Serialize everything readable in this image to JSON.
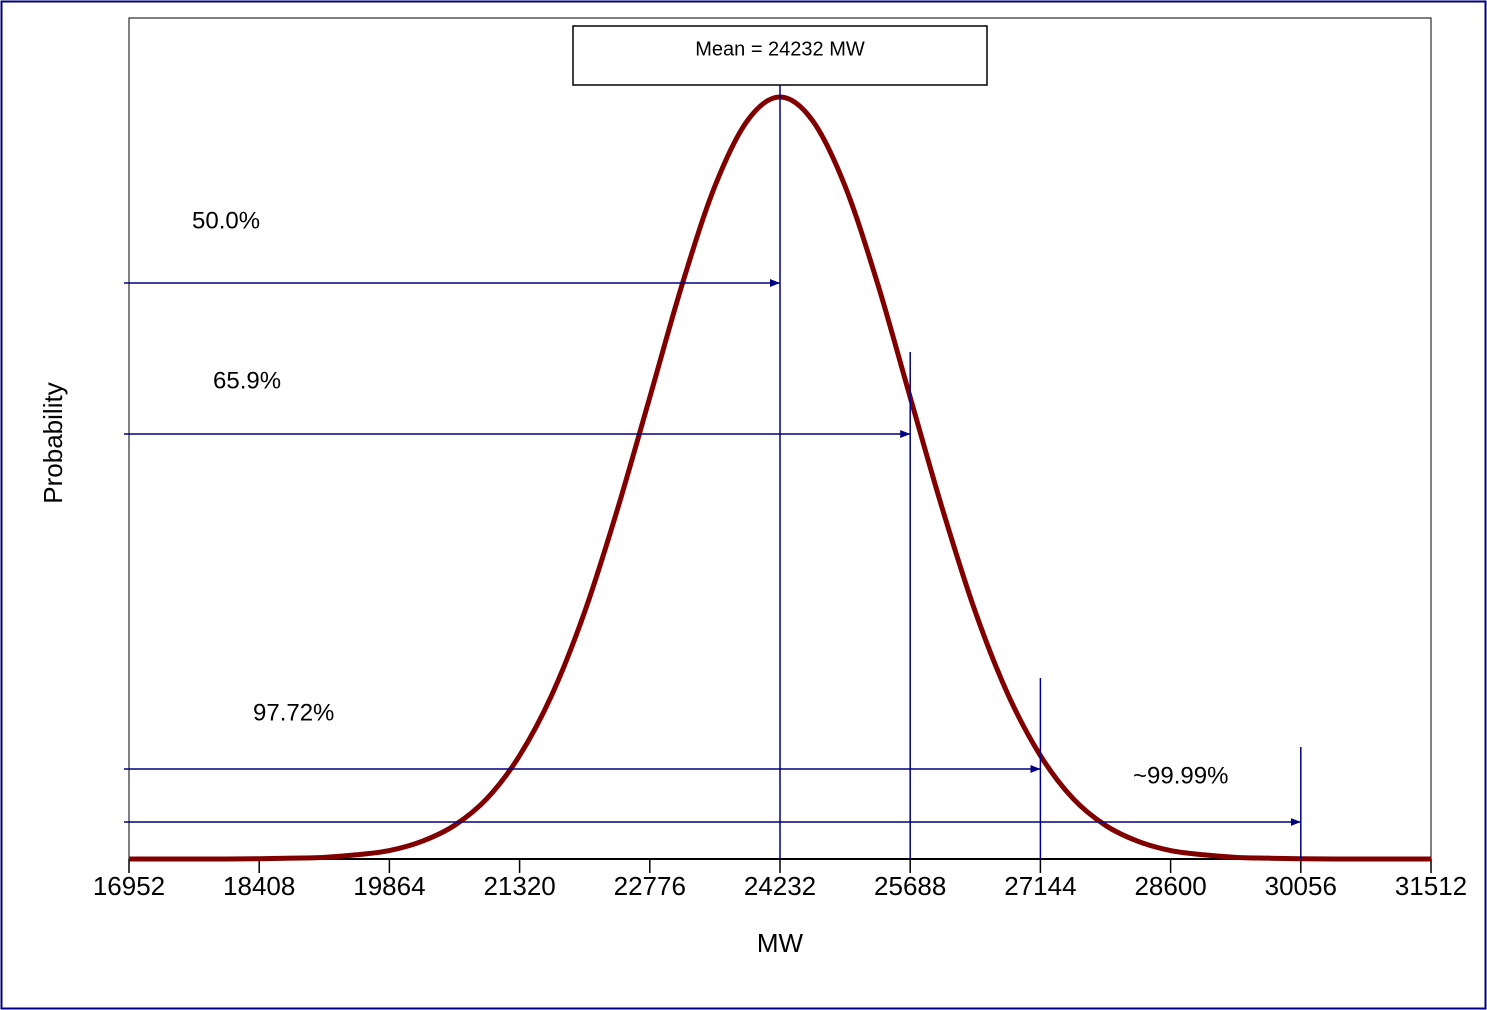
{
  "chart_data": {
    "type": "line",
    "title": "Mean =  24232 MW",
    "x_label": "MW",
    "y_label": "Probability",
    "x": [
      16952,
      17316,
      17680,
      18044,
      18408,
      18772,
      19136,
      19500,
      19864,
      20228,
      20592,
      20956,
      21320,
      21684,
      22048,
      22412,
      22776,
      23140,
      23504,
      23868,
      24232,
      24596,
      24960,
      25324,
      25688,
      26052,
      26416,
      26780,
      27144,
      27508,
      27872,
      28236,
      28600,
      28964,
      29328,
      29692,
      30056,
      30420,
      30784,
      31148,
      31512
    ],
    "series": [
      {
        "name": "Probability",
        "color": "#800000",
        "values": [
          0,
          0,
          0,
          0,
          0.0003,
          0.001,
          0.002,
          0.005,
          0.01,
          0.021,
          0.04,
          0.072,
          0.123,
          0.196,
          0.294,
          0.415,
          0.549,
          0.684,
          0.8,
          0.878,
          0.906,
          0.878,
          0.8,
          0.684,
          0.549,
          0.415,
          0.294,
          0.196,
          0.123,
          0.072,
          0.04,
          0.021,
          0.01,
          0.005,
          0.002,
          0.001,
          0.0003,
          0,
          0,
          0,
          0
        ]
      }
    ],
    "xlim": [
      16952,
      31512
    ],
    "ylim": [
      0,
      1
    ],
    "xticks": [
      16952,
      18408,
      19864,
      21320,
      22776,
      24232,
      25688,
      27144,
      28600,
      30056,
      31512
    ],
    "annotations": [
      {
        "text": "50.0%",
        "x": 24232
      },
      {
        "text": "65.9%",
        "x": 25688
      },
      {
        "text": "97.72%",
        "x": 27144
      },
      {
        "text": "~99.99%",
        "x": 30056
      }
    ]
  }
}
